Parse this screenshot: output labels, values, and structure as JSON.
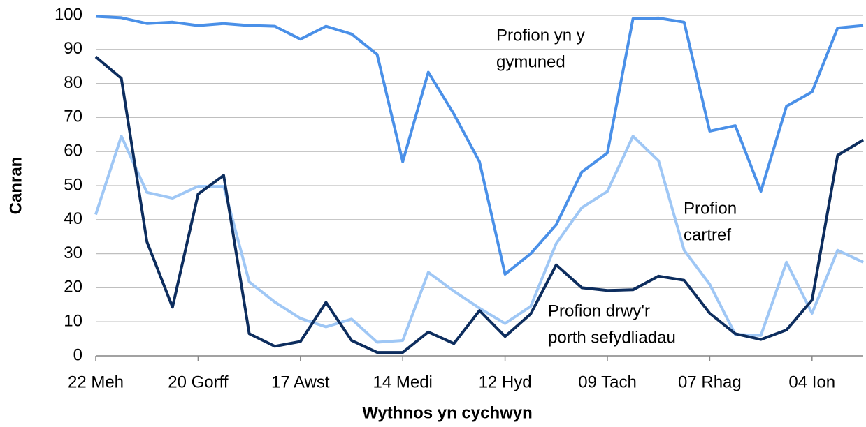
{
  "chart_data": {
    "type": "line",
    "xlabel": "Wythnos yn cychwyn",
    "ylabel": "Canran",
    "categories": [
      "22 Meh",
      null,
      null,
      null,
      "20 Gorff",
      null,
      null,
      null,
      "17 Awst",
      null,
      null,
      null,
      "14 Medi",
      null,
      null,
      null,
      "12 Hyd",
      null,
      null,
      null,
      "09 Tach",
      null,
      null,
      null,
      "07 Rhag",
      null,
      null,
      null,
      "04 Ion",
      null,
      null
    ],
    "ylim": [
      0,
      100
    ],
    "yticks": [
      0,
      10,
      20,
      30,
      40,
      50,
      60,
      70,
      80,
      90,
      100
    ],
    "grid": true,
    "series": [
      {
        "label": [
          "Profion yn y",
          "gymuned"
        ],
        "color": "#4a90e8",
        "values": [
          99.7,
          99.3,
          97.6,
          98,
          97,
          97.6,
          97,
          96.8,
          93,
          96.8,
          94.5,
          88.5,
          57,
          83.3,
          71,
          57,
          24,
          30,
          38.5,
          54,
          59.6,
          99,
          99.2,
          98,
          66,
          67.6,
          48.3,
          73.3,
          77.5,
          96.3,
          97
        ]
      },
      {
        "label": [
          "Profion",
          "cartref"
        ],
        "color": "#9fc7f5",
        "values": [
          41.5,
          64.5,
          48,
          46.3,
          49.8,
          49.8,
          21.7,
          15.8,
          11,
          8.5,
          10.8,
          4,
          4.5,
          24.5,
          19,
          14,
          9.5,
          14.5,
          33,
          43.5,
          48.3,
          64.5,
          57.3,
          31,
          21,
          6.3,
          6,
          27.5,
          12.5,
          31,
          27.5
        ]
      },
      {
        "label": [
          "Profion drwy'r",
          "porth sefydliadau"
        ],
        "color": "#0d2d5e",
        "values": [
          87.8,
          81.5,
          33.5,
          14.3,
          47.5,
          53,
          6.5,
          2.8,
          4.2,
          15.7,
          4.5,
          1,
          1,
          7,
          3.6,
          13.3,
          5.7,
          12.3,
          26.7,
          20,
          19.2,
          19.4,
          23.4,
          22.2,
          12.5,
          6.5,
          4.8,
          7.6,
          16.4,
          58.9,
          63.4
        ]
      }
    ]
  }
}
